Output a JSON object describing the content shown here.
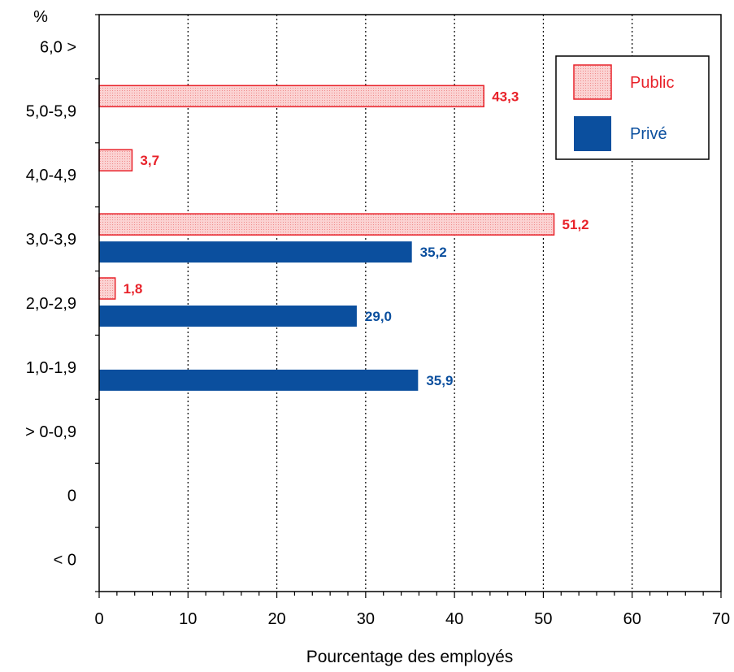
{
  "chart_data": {
    "type": "bar",
    "orientation": "horizontal",
    "ylabel": "%",
    "xlabel": "Pourcentage des employés",
    "categories": [
      "6,0 >",
      "5,0-5,9",
      "4,0-4,9",
      "3,0-3,9",
      "2,0-2,9",
      "1,0-1,9",
      "> 0-0,9",
      "0",
      "< 0"
    ],
    "xlim": [
      0,
      70
    ],
    "xticks": [
      0,
      10,
      20,
      30,
      40,
      50,
      60,
      70
    ],
    "grid": "vertical-dotted",
    "legend_position": "top-right",
    "series": [
      {
        "name": "Public",
        "color": "#e8222a",
        "fill": "#f9c6c6",
        "values": [
          null,
          43.3,
          3.7,
          51.2,
          1.8,
          null,
          null,
          null,
          null
        ],
        "labels": [
          null,
          "43,3",
          "3,7",
          "51,2",
          "1,8",
          null,
          null,
          null,
          null
        ]
      },
      {
        "name": "Privé",
        "color": "#0b4f9e",
        "fill": "#0b4f9e",
        "values": [
          null,
          null,
          null,
          35.2,
          29.0,
          35.9,
          null,
          null,
          null
        ],
        "labels": [
          null,
          null,
          null,
          "35,2",
          "29,0",
          "35,9",
          null,
          null,
          null
        ]
      }
    ]
  }
}
